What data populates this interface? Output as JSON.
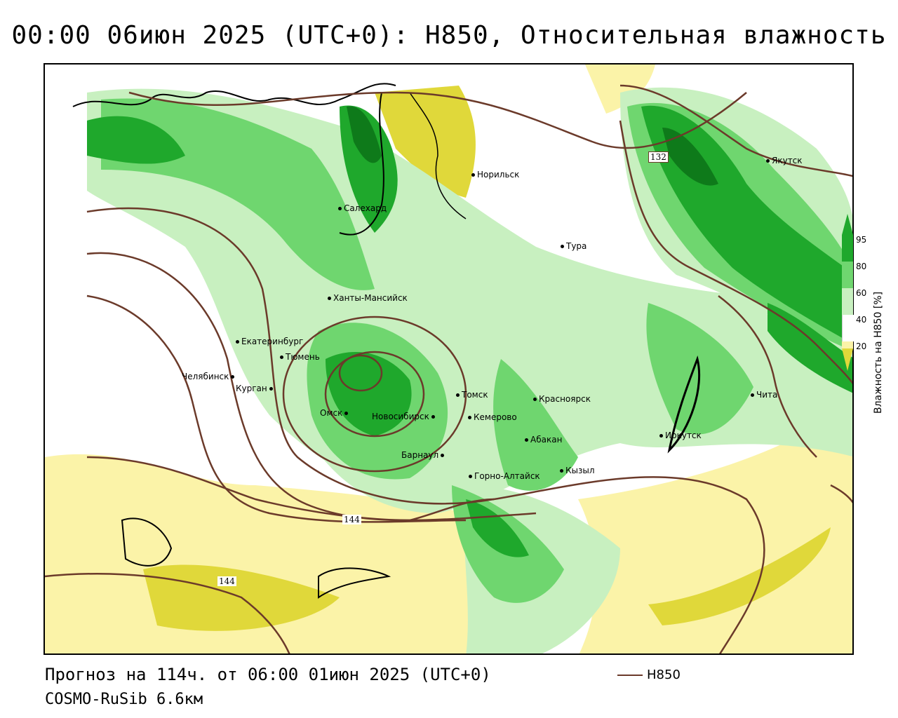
{
  "title": "00:00 06июн 2025 (UTC+0): H850, Относительная влажность",
  "forecast_text": "Прогноз на 114ч. от 06:00 01июн 2025 (UTC+0)",
  "model_text": "COSMO-RuSib 6.6км",
  "line_legend_label": "H850",
  "legend": {
    "title": "Влажность на H850 [%]",
    "ticks": [
      "95",
      "80",
      "60",
      "40",
      "20"
    ],
    "colors": {
      "very_dry": "#e0d83a",
      "dry": "#fbf3a8",
      "neutral": "#ffffff",
      "moist": "#c8f0c0",
      "humid": "#6fd66f",
      "wet": "#1fa82c",
      "saturated": "#0e7a1a",
      "isoline": "#6b3a2a"
    }
  },
  "isolines": [
    "132",
    "144",
    "144"
  ],
  "cities": [
    {
      "name": "Норильск"
    },
    {
      "name": "Якутск"
    },
    {
      "name": "Салехард"
    },
    {
      "name": "Тура"
    },
    {
      "name": "Ханты-Мансийск"
    },
    {
      "name": "Екатеринбург"
    },
    {
      "name": "Тюмень"
    },
    {
      "name": "Челябинск"
    },
    {
      "name": "Курган"
    },
    {
      "name": "Омск"
    },
    {
      "name": "Новосибирск"
    },
    {
      "name": "Томск"
    },
    {
      "name": "Красноярск"
    },
    {
      "name": "Кемерово"
    },
    {
      "name": "Абакан"
    },
    {
      "name": "Барнаул"
    },
    {
      "name": "Горно-Алтайск"
    },
    {
      "name": "Кызыл"
    },
    {
      "name": "Иркутск"
    },
    {
      "name": "Чита"
    }
  ]
}
